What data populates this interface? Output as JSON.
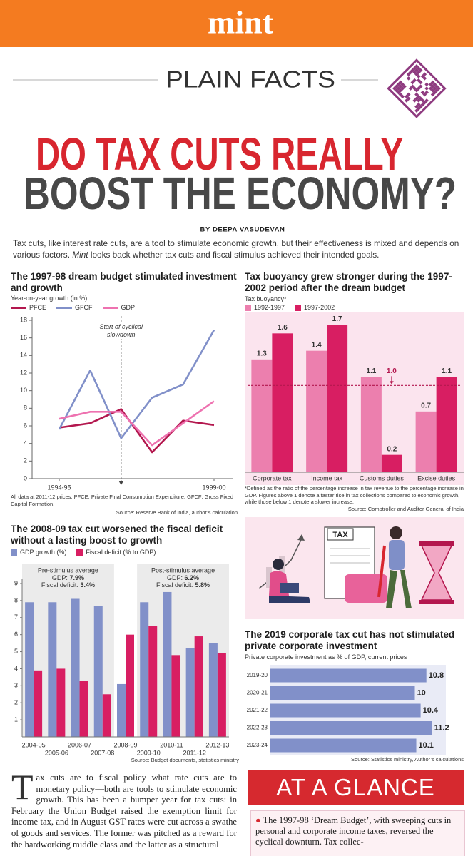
{
  "header": {
    "brand": "mint",
    "section": "PLAIN FACTS",
    "title_line1": "DO TAX CUTS REALLY",
    "title_line2": "BOOST THE ECONOMY?",
    "byline": "BY DEEPA VASUDEVAN",
    "intro": [
      "Tax cuts, like interest rate cuts, are a tool to stimulate economic growth, but their effectiveness is mixed and depends on various factors. ",
      "Mint",
      " looks back whether tax cuts and fiscal stimulus achieved their intended goals."
    ]
  },
  "chart_data": [
    {
      "type": "line",
      "title": "The 1997-98 dream budget stimulated investment and growth",
      "ylabel": "Year-on-year growth (in %)",
      "categories": [
        "1994-95",
        null,
        null,
        null,
        null,
        "1999-00"
      ],
      "series": [
        {
          "name": "PFCE",
          "color": "#b3174e",
          "values": [
            5.8,
            6.3,
            7.9,
            3.0,
            6.6,
            6.1
          ]
        },
        {
          "name": "GFCF",
          "color": "#8190c9",
          "values": [
            5.6,
            12.3,
            4.6,
            9.2,
            10.7,
            16.9
          ]
        },
        {
          "name": "GDP",
          "color": "#ee72b0",
          "values": [
            6.8,
            7.6,
            7.6,
            3.8,
            6.3,
            8.8
          ]
        }
      ],
      "ylim": [
        0,
        18
      ],
      "yticks": [
        0,
        2,
        4,
        6,
        8,
        10,
        12,
        14,
        16,
        18
      ],
      "annotation": "Start of cyclical slowdown",
      "note": "All data at 2011-12 prices. PFCE: Private Final Consumption Expenditure. GFCF: Gross Fixed Capital Formation.",
      "source": "Source: Reserve Bank of India, author’s calculation"
    },
    {
      "type": "bar",
      "title": "Tax buoyancy grew stronger during the 1997-2002 period after the dream budget",
      "ylabel": "Tax buoyancy*",
      "categories": [
        "Corporate tax",
        "Income tax",
        "Customs duties",
        "Excise duties"
      ],
      "series": [
        {
          "name": "1992-1997",
          "color": "#ec7fae",
          "values": [
            1.3,
            1.4,
            1.1,
            0.7
          ]
        },
        {
          "name": "1997-2002",
          "color": "#d81e62",
          "values": [
            1.6,
            1.7,
            0.2,
            1.1
          ]
        }
      ],
      "ylim": [
        0,
        1.8
      ],
      "reference_line": {
        "value": 1,
        "label": "1.0"
      },
      "note": "*Defined as the ratio of the percentage increase in tax revenue to the percentage increase in GDP. Figures above 1 denote a faster rise in tax collections compared to economic growth, while those below 1 denote a slower increase.",
      "source": "Source: Comptroller and Auditor General of India"
    },
    {
      "type": "bar",
      "title": "The 2008-09 tax cut worsened the fiscal deficit without a lasting boost to growth",
      "categories": [
        "2004-05",
        "2005-06",
        "2006-07",
        "2007-08",
        "2008-09",
        "2009-10",
        "2010-11",
        "2011-12",
        "2012-13"
      ],
      "series": [
        {
          "name": "GDP growth (%)",
          "color": "#8190c9",
          "values": [
            7.9,
            7.9,
            8.1,
            7.7,
            3.1,
            7.9,
            8.5,
            5.2,
            5.5
          ]
        },
        {
          "name": "Fiscal deficit (% to GDP)",
          "color": "#d81e62",
          "values": [
            3.9,
            4.0,
            3.3,
            2.5,
            6.0,
            6.5,
            4.8,
            5.9,
            4.9
          ]
        }
      ],
      "ylim": [
        0,
        9
      ],
      "yticks": [
        1,
        2,
        3,
        4,
        5,
        6,
        7,
        8,
        9
      ],
      "annotations": [
        {
          "heading": "Pre-stimulus average",
          "items": [
            [
              "GDP: ",
              "7.9%"
            ],
            [
              "Fiscal deficit: ",
              "3.4%"
            ]
          ]
        },
        {
          "heading": "Post-stimulus average",
          "items": [
            [
              "GDP: ",
              "6.2%"
            ],
            [
              "Fiscal deficit: ",
              "5.8%"
            ]
          ]
        }
      ],
      "source": "Source: Budget documents, statistics ministry"
    },
    {
      "type": "barh",
      "title": "The 2019 corporate tax cut has not stimulated private corporate investment",
      "subtitle": "Private corporate investment as % of GDP, current prices",
      "categories": [
        "2019-20",
        "2020-21",
        "2021-22",
        "2022-23",
        "2023-24"
      ],
      "values": [
        10.8,
        10,
        10.4,
        11.2,
        10.1
      ],
      "color": "#8190c9",
      "xlim": [
        0,
        12
      ],
      "source": "Source: Statistics ministry, Author’s calculations"
    }
  ],
  "illustration": {
    "sign": "TAX"
  },
  "article": {
    "text": "Tax cuts are to fiscal policy what rate cuts are to monetary policy—both are tools to stimulate economic growth. This has been a bumper year for tax cuts: in February the Union Budget raised the exemption limit for income tax, and in August GST rates were cut across a swathe of goods and services. The former was pitched as a reward for the hardworking middle class and the latter as a structural",
    "glance_title": "AT A GLANCE",
    "glance_points": [
      "The 1997-98 ‘Dream Budget’, with sweeping cuts in personal and corporate income taxes, reversed the cyclical downturn. Tax collec-"
    ]
  }
}
